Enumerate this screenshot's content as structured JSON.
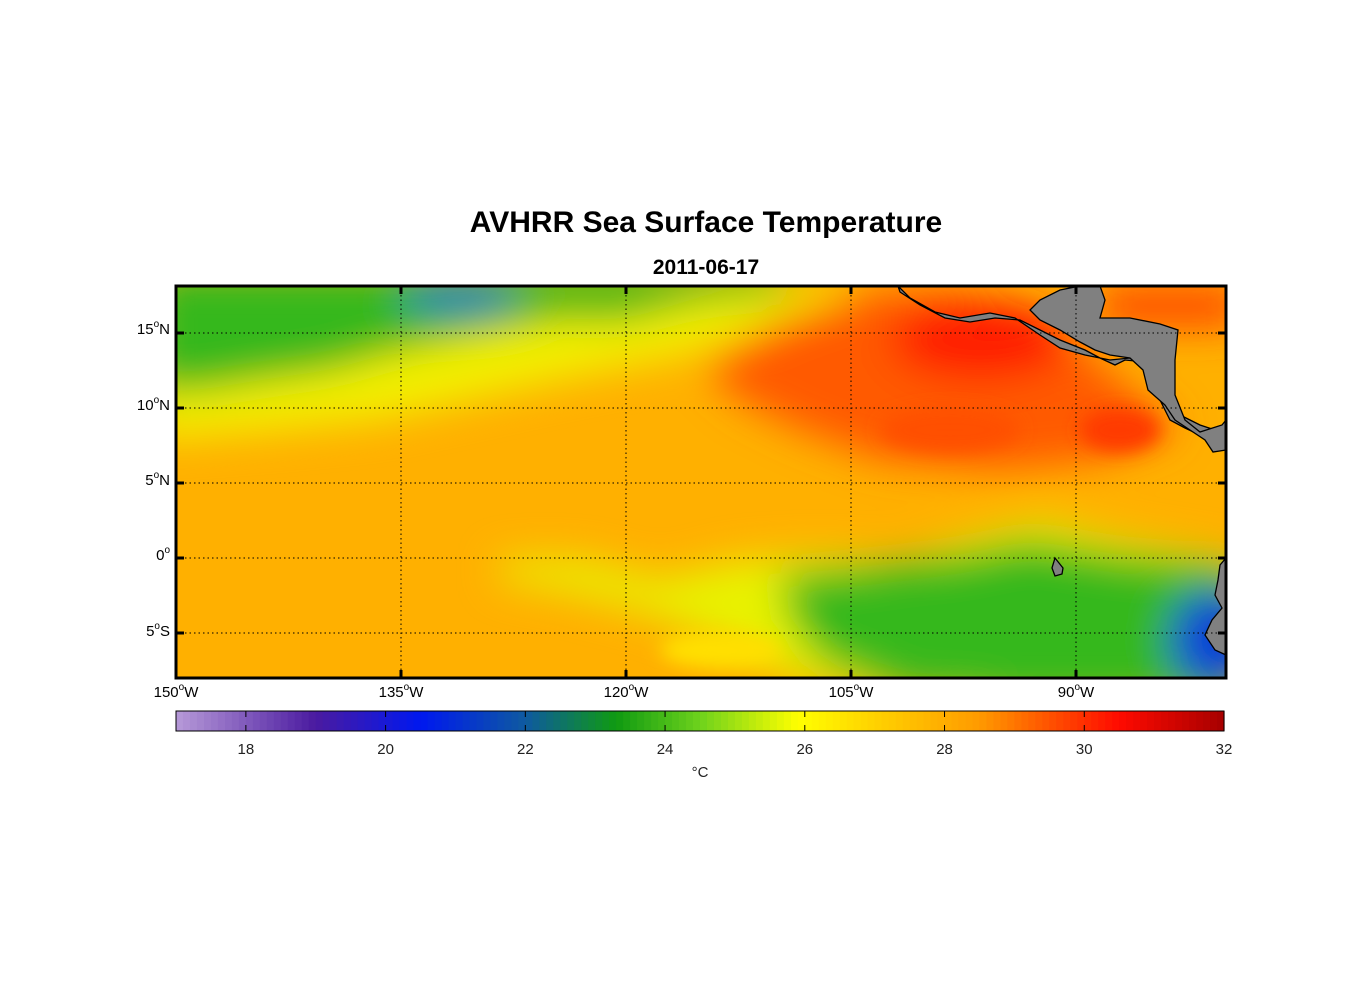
{
  "title": "AVHRR Sea Surface Temperature",
  "subtitle": "2011-06-17",
  "map": {
    "lon_range": [
      -150,
      -80
    ],
    "lat_range": [
      -8,
      18
    ],
    "grid": true,
    "land_color": "#7f7f7f",
    "lat_labels": [
      {
        "value": 15,
        "num": "15",
        "suffix": "N"
      },
      {
        "value": 10,
        "num": "10",
        "suffix": "N"
      },
      {
        "value": 5,
        "num": "5",
        "suffix": "N"
      },
      {
        "value": 0,
        "num": "0",
        "suffix": ""
      },
      {
        "value": -5,
        "num": "5",
        "suffix": "S"
      }
    ],
    "lon_labels": [
      {
        "value": -150,
        "num": "150",
        "suffix": "W"
      },
      {
        "value": -135,
        "num": "135",
        "suffix": "W"
      },
      {
        "value": -120,
        "num": "120",
        "suffix": "W"
      },
      {
        "value": -105,
        "num": "105",
        "suffix": "W"
      },
      {
        "value": -90,
        "num": "90",
        "suffix": "W"
      }
    ]
  },
  "colorbar": {
    "range": [
      17,
      32
    ],
    "ticks": [
      "18",
      "20",
      "22",
      "24",
      "26",
      "28",
      "30",
      "32"
    ],
    "unit": "°C",
    "colormap": [
      [
        17,
        "#b79ad8"
      ],
      [
        19,
        "#4a1aa0"
      ],
      [
        20.5,
        "#0018f0"
      ],
      [
        22,
        "#0e5aa0"
      ],
      [
        23.3,
        "#0f9a12"
      ],
      [
        24.5,
        "#6ed21c"
      ],
      [
        25.9,
        "#ffff00"
      ],
      [
        27,
        "#ffd200"
      ],
      [
        28.5,
        "#ff9a00"
      ],
      [
        30.5,
        "#ff0a00"
      ],
      [
        32,
        "#a60000"
      ]
    ]
  }
}
